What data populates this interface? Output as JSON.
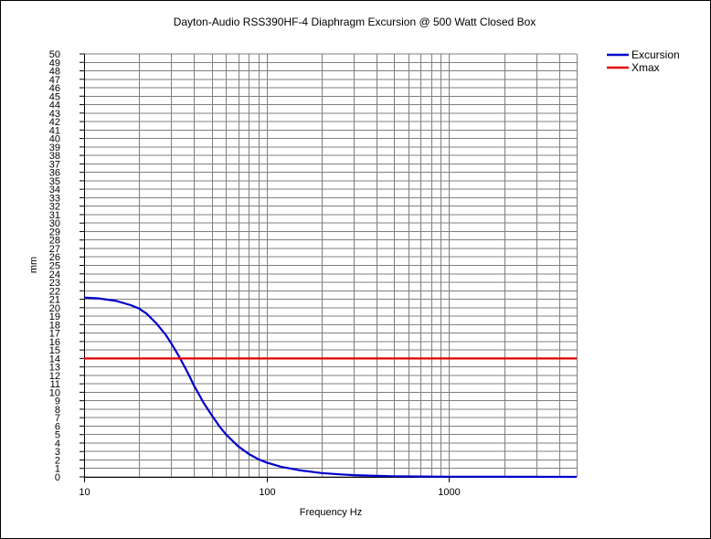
{
  "chart_data": {
    "type": "line",
    "title": "Dayton-Audio RSS390HF-4 Diaphragm Excursion @ 500 Watt Closed Box",
    "xlabel": "Frequency Hz",
    "ylabel": "mm",
    "x_scale": "log",
    "xlim": [
      10,
      5000
    ],
    "ylim": [
      0,
      50
    ],
    "x_ticks": [
      "10",
      "100",
      "1000"
    ],
    "y_ticks": [
      "0",
      "1",
      "2",
      "3",
      "4",
      "5",
      "6",
      "7",
      "8",
      "9",
      "10",
      "11",
      "12",
      "13",
      "14",
      "15",
      "16",
      "17",
      "18",
      "19",
      "20",
      "21",
      "22",
      "23",
      "24",
      "25",
      "26",
      "27",
      "28",
      "29",
      "30",
      "31",
      "32",
      "33",
      "34",
      "35",
      "36",
      "37",
      "38",
      "39",
      "40",
      "41",
      "42",
      "43",
      "44",
      "45",
      "46",
      "47",
      "48",
      "49",
      "50"
    ],
    "grid": true,
    "legend_position": "top-right",
    "series": [
      {
        "name": "Excursion",
        "color": "#0000cc",
        "x": [
          10,
          12,
          15,
          18,
          20,
          22,
          25,
          28,
          30,
          33,
          36,
          38,
          40,
          43,
          45,
          50,
          55,
          60,
          70,
          80,
          90,
          100,
          120,
          150,
          200,
          250,
          300,
          400,
          500,
          700,
          1000,
          2000,
          5000
        ],
        "y": [
          21.2,
          21.1,
          20.8,
          20.3,
          19.9,
          19.3,
          18.1,
          16.8,
          15.8,
          14.3,
          12.8,
          11.8,
          10.8,
          9.6,
          8.8,
          7.3,
          6.0,
          5.0,
          3.6,
          2.7,
          2.1,
          1.7,
          1.2,
          0.8,
          0.45,
          0.3,
          0.2,
          0.12,
          0.08,
          0.04,
          0.02,
          0.01,
          0.0
        ]
      },
      {
        "name": "Xmax",
        "color": "#e00000",
        "x": [
          10,
          5000
        ],
        "y": [
          14,
          14
        ]
      }
    ]
  }
}
